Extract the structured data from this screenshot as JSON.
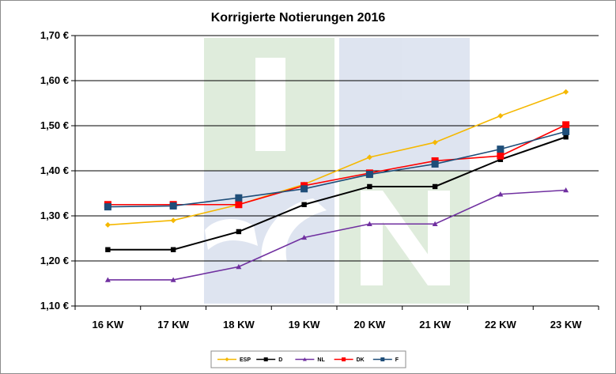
{
  "chart_data": {
    "type": "line",
    "title": "Korrigierte Notierungen 2016",
    "categories": [
      "16 KW",
      "17 KW",
      "18 KW",
      "19 KW",
      "20 KW",
      "21 KW",
      "22 KW",
      "23 KW"
    ],
    "ylim": [
      1.1,
      1.7
    ],
    "yticks": [
      1.1,
      1.2,
      1.3,
      1.4,
      1.5,
      1.6,
      1.7
    ],
    "ytick_labels": [
      "1,10 €",
      "1,20 €",
      "1,30 €",
      "1,40 €",
      "1,50 €",
      "1,60 €",
      "1,70 €"
    ],
    "grid": true,
    "legend_position": "bottom",
    "watermark": "ISN",
    "series": [
      {
        "name": "ESP",
        "color": "#f5b800",
        "marker": "diamond",
        "values": [
          1.28,
          1.29,
          1.325,
          1.37,
          1.43,
          1.463,
          1.522,
          1.575
        ]
      },
      {
        "name": "D",
        "color": "#000000",
        "marker": "square",
        "values": [
          1.225,
          1.225,
          1.265,
          1.325,
          1.365,
          1.365,
          1.425,
          1.475
        ]
      },
      {
        "name": "NL",
        "color": "#7030a0",
        "marker": "triangle",
        "values": [
          1.158,
          1.158,
          1.187,
          1.252,
          1.282,
          1.282,
          1.348,
          1.357
        ]
      },
      {
        "name": "DK",
        "color": "#ff0000",
        "marker": "square",
        "values": [
          1.325,
          1.325,
          1.325,
          1.367,
          1.395,
          1.422,
          1.433,
          1.502
        ]
      },
      {
        "name": "F",
        "color": "#1f4e79",
        "marker": "square",
        "values": [
          1.32,
          1.322,
          1.34,
          1.36,
          1.392,
          1.415,
          1.448,
          1.487
        ]
      }
    ]
  }
}
